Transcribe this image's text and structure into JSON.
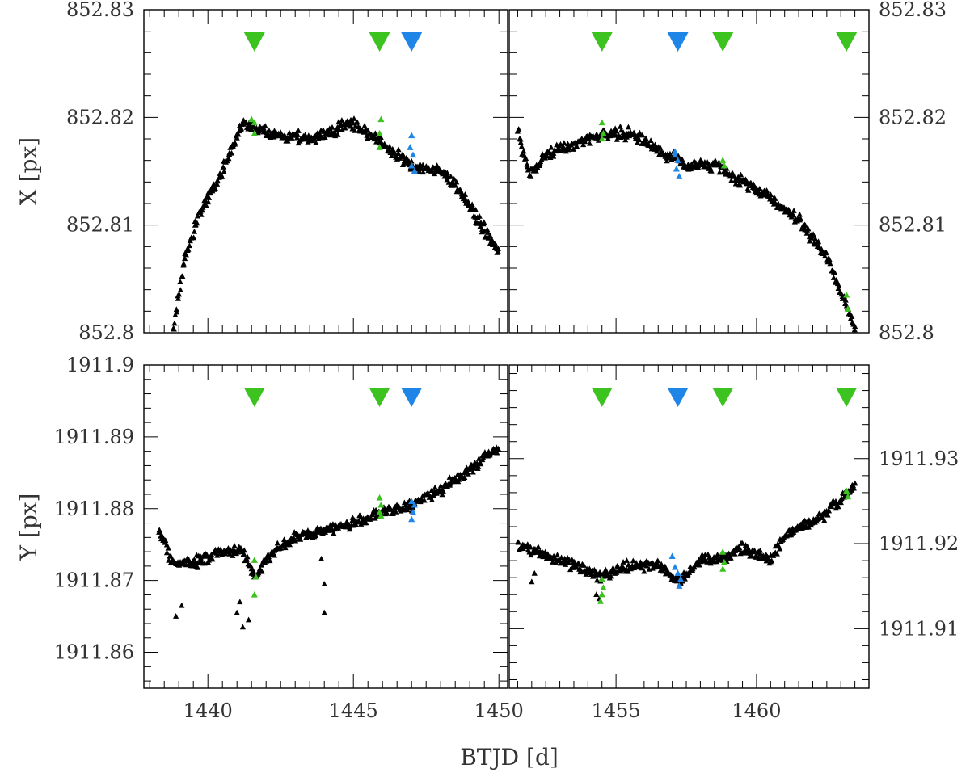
{
  "figure": {
    "x_axis_label": "BTJD [d]",
    "y_axis_label_top": "X [px]",
    "y_axis_label_bottom": "Y [px]"
  },
  "colors": {
    "black": "#000000",
    "green": "#3cc31f",
    "blue": "#1f86e8"
  },
  "chart_data": [
    {
      "id": "x-left",
      "type": "scatter",
      "xlim": [
        1437.8,
        1450.3
      ],
      "ylim": [
        852.8,
        852.83
      ],
      "x_ticks": [
        1440,
        1445,
        1450
      ],
      "x_tick_labels": [],
      "y_ticks": [
        852.8,
        852.81,
        852.82,
        852.83
      ],
      "y_tick_labels": [
        "852.8",
        "852.81",
        "852.82",
        "852.83"
      ],
      "y_label_side": "left",
      "markers": [
        {
          "x": 1441.6,
          "color": "green"
        },
        {
          "x": 1445.9,
          "color": "green"
        },
        {
          "x": 1447.0,
          "color": "blue"
        }
      ],
      "trend": [
        [
          1438.8,
          852.8
        ],
        [
          1439.2,
          852.807
        ],
        [
          1439.7,
          852.811
        ],
        [
          1440.5,
          852.815
        ],
        [
          1441.2,
          852.8195
        ],
        [
          1442.0,
          852.8185
        ],
        [
          1443.5,
          852.818
        ],
        [
          1445.0,
          852.8195
        ],
        [
          1446.0,
          852.8175
        ],
        [
          1447.0,
          852.8155
        ],
        [
          1448.0,
          852.815
        ],
        [
          1448.6,
          852.8135
        ],
        [
          1449.5,
          852.8095
        ],
        [
          1450.0,
          852.8075
        ]
      ],
      "colored": [
        {
          "x": 1441.6,
          "y": 852.8195,
          "color": "green"
        },
        {
          "x": 1441.6,
          "y": 852.8185,
          "color": "green"
        },
        {
          "x": 1441.5,
          "y": 852.8198,
          "color": "green"
        },
        {
          "x": 1445.9,
          "y": 852.8185,
          "color": "green"
        },
        {
          "x": 1445.95,
          "y": 852.8198,
          "color": "green"
        },
        {
          "x": 1445.9,
          "y": 852.8172,
          "color": "green"
        },
        {
          "x": 1447.0,
          "y": 852.8183,
          "color": "blue"
        },
        {
          "x": 1447.05,
          "y": 852.8165,
          "color": "blue"
        },
        {
          "x": 1447.0,
          "y": 852.8155,
          "color": "blue"
        },
        {
          "x": 1447.1,
          "y": 852.815,
          "color": "blue"
        },
        {
          "x": 1446.95,
          "y": 852.8172,
          "color": "blue"
        }
      ]
    },
    {
      "id": "x-right",
      "type": "scatter",
      "xlim": [
        1451.2,
        1464.0
      ],
      "ylim": [
        852.8,
        852.83
      ],
      "x_ticks": [
        1455,
        1460
      ],
      "x_tick_labels": [],
      "y_ticks": [
        852.8,
        852.81,
        852.82,
        852.83
      ],
      "y_tick_labels": [
        "852.8",
        "852.81",
        "852.82",
        "852.83"
      ],
      "y_label_side": "right",
      "markers": [
        {
          "x": 1454.5,
          "color": "green"
        },
        {
          "x": 1457.2,
          "color": "blue"
        },
        {
          "x": 1458.8,
          "color": "green"
        },
        {
          "x": 1463.2,
          "color": "green"
        }
      ],
      "trend": [
        [
          1451.5,
          852.819
        ],
        [
          1451.9,
          852.8145
        ],
        [
          1452.5,
          852.8165
        ],
        [
          1453.5,
          852.8175
        ],
        [
          1454.5,
          852.8185
        ],
        [
          1455.5,
          852.8185
        ],
        [
          1456.5,
          852.817
        ],
        [
          1457.5,
          852.8155
        ],
        [
          1458.5,
          852.8155
        ],
        [
          1459.5,
          852.814
        ],
        [
          1460.5,
          852.8125
        ],
        [
          1461.5,
          852.8105
        ],
        [
          1462.5,
          852.807
        ],
        [
          1463.5,
          852.8005
        ]
      ],
      "colored": [
        {
          "x": 1454.5,
          "y": 852.8195,
          "color": "green"
        },
        {
          "x": 1454.55,
          "y": 852.8185,
          "color": "green"
        },
        {
          "x": 1454.5,
          "y": 852.818,
          "color": "green"
        },
        {
          "x": 1457.1,
          "y": 852.8168,
          "color": "blue"
        },
        {
          "x": 1457.2,
          "y": 852.816,
          "color": "blue"
        },
        {
          "x": 1457.15,
          "y": 852.8152,
          "color": "blue"
        },
        {
          "x": 1457.25,
          "y": 852.8145,
          "color": "blue"
        },
        {
          "x": 1457.1,
          "y": 852.8165,
          "color": "blue"
        },
        {
          "x": 1458.8,
          "y": 852.816,
          "color": "green"
        },
        {
          "x": 1458.85,
          "y": 852.8155,
          "color": "green"
        },
        {
          "x": 1463.2,
          "y": 852.8035,
          "color": "green"
        },
        {
          "x": 1463.25,
          "y": 852.8022,
          "color": "green"
        }
      ]
    },
    {
      "id": "y-left",
      "type": "scatter",
      "xlim": [
        1437.8,
        1450.3
      ],
      "ylim": [
        1911.855,
        1911.9
      ],
      "x_ticks": [
        1440,
        1445,
        1450
      ],
      "x_tick_labels": [
        "1440",
        "1445",
        "1450"
      ],
      "y_ticks": [
        1911.86,
        1911.87,
        1911.88,
        1911.89,
        1911.9
      ],
      "y_tick_labels": [
        "1911.86",
        "1911.87",
        "1911.88",
        "1911.89",
        "1911.9"
      ],
      "y_label_side": "left",
      "markers": [
        {
          "x": 1441.6,
          "color": "green"
        },
        {
          "x": 1445.9,
          "color": "green"
        },
        {
          "x": 1447.0,
          "color": "blue"
        }
      ],
      "trend": [
        [
          1438.3,
          1911.877
        ],
        [
          1438.8,
          1911.8725
        ],
        [
          1439.5,
          1911.8725
        ],
        [
          1440.5,
          1911.874
        ],
        [
          1441.2,
          1911.874
        ],
        [
          1441.6,
          1911.8705
        ],
        [
          1442.2,
          1911.874
        ],
        [
          1443.0,
          1911.876
        ],
        [
          1444.0,
          1911.877
        ],
        [
          1445.0,
          1911.878
        ],
        [
          1446.0,
          1911.8795
        ],
        [
          1447.0,
          1911.8805
        ],
        [
          1448.0,
          1911.8825
        ],
        [
          1449.0,
          1911.8855
        ],
        [
          1450.0,
          1911.8885
        ]
      ],
      "colored": [
        {
          "x": 1441.6,
          "y": 1911.8728,
          "color": "green"
        },
        {
          "x": 1441.65,
          "y": 1911.8705,
          "color": "green"
        },
        {
          "x": 1441.6,
          "y": 1911.868,
          "color": "green"
        },
        {
          "x": 1445.9,
          "y": 1911.8815,
          "color": "green"
        },
        {
          "x": 1445.95,
          "y": 1911.8805,
          "color": "green"
        },
        {
          "x": 1445.9,
          "y": 1911.8795,
          "color": "green"
        },
        {
          "x": 1445.95,
          "y": 1911.879,
          "color": "green"
        },
        {
          "x": 1447.0,
          "y": 1911.881,
          "color": "blue"
        },
        {
          "x": 1447.1,
          "y": 1911.8805,
          "color": "blue"
        },
        {
          "x": 1447.05,
          "y": 1911.8795,
          "color": "blue"
        },
        {
          "x": 1447.0,
          "y": 1911.8785,
          "color": "blue"
        }
      ],
      "outliers": [
        {
          "x": 1438.9,
          "y": 1911.865
        },
        {
          "x": 1439.1,
          "y": 1911.8665
        },
        {
          "x": 1441.0,
          "y": 1911.8655
        },
        {
          "x": 1441.2,
          "y": 1911.8635
        },
        {
          "x": 1441.4,
          "y": 1911.8645
        },
        {
          "x": 1441.1,
          "y": 1911.867
        },
        {
          "x": 1444.0,
          "y": 1911.8655
        },
        {
          "x": 1444.0,
          "y": 1911.8695
        },
        {
          "x": 1443.9,
          "y": 1911.873
        }
      ]
    },
    {
      "id": "y-right",
      "type": "scatter",
      "xlim": [
        1451.2,
        1464.0
      ],
      "ylim": [
        1911.903,
        1911.941
      ],
      "x_ticks": [
        1455,
        1460
      ],
      "x_tick_labels": [
        "1455",
        "1460"
      ],
      "y_ticks": [
        1911.91,
        1911.92,
        1911.93
      ],
      "y_tick_labels": [
        "1911.91",
        "1911.92",
        "1911.93"
      ],
      "y_label_side": "right",
      "markers": [
        {
          "x": 1454.5,
          "color": "green"
        },
        {
          "x": 1457.2,
          "color": "blue"
        },
        {
          "x": 1458.8,
          "color": "green"
        },
        {
          "x": 1463.2,
          "color": "green"
        }
      ],
      "trend": [
        [
          1451.5,
          1911.92
        ],
        [
          1452.5,
          1911.9185
        ],
        [
          1453.5,
          1911.9175
        ],
        [
          1454.5,
          1911.916
        ],
        [
          1455.5,
          1911.9175
        ],
        [
          1456.5,
          1911.9175
        ],
        [
          1457.3,
          1911.9155
        ],
        [
          1458.0,
          1911.918
        ],
        [
          1459.0,
          1911.9185
        ],
        [
          1459.5,
          1911.9195
        ],
        [
          1460.5,
          1911.918
        ],
        [
          1461.0,
          1911.921
        ],
        [
          1462.0,
          1911.9225
        ],
        [
          1463.0,
          1911.925
        ],
        [
          1463.5,
          1911.927
        ]
      ],
      "colored": [
        {
          "x": 1454.5,
          "y": 1911.9158,
          "color": "green"
        },
        {
          "x": 1454.55,
          "y": 1911.9148,
          "color": "green"
        },
        {
          "x": 1454.5,
          "y": 1911.914,
          "color": "green"
        },
        {
          "x": 1454.45,
          "y": 1911.9132,
          "color": "green"
        },
        {
          "x": 1457.0,
          "y": 1911.9185,
          "color": "blue"
        },
        {
          "x": 1457.1,
          "y": 1911.9172,
          "color": "blue"
        },
        {
          "x": 1457.2,
          "y": 1911.9165,
          "color": "blue"
        },
        {
          "x": 1457.3,
          "y": 1911.9158,
          "color": "blue"
        },
        {
          "x": 1457.25,
          "y": 1911.915,
          "color": "blue"
        },
        {
          "x": 1458.8,
          "y": 1911.919,
          "color": "green"
        },
        {
          "x": 1458.85,
          "y": 1911.9178,
          "color": "green"
        },
        {
          "x": 1458.8,
          "y": 1911.917,
          "color": "green"
        },
        {
          "x": 1463.2,
          "y": 1911.9262,
          "color": "green"
        },
        {
          "x": 1463.25,
          "y": 1911.9255,
          "color": "green"
        }
      ],
      "outliers": [
        {
          "x": 1454.4,
          "y": 1911.9135
        },
        {
          "x": 1454.3,
          "y": 1911.914
        },
        {
          "x": 1452.0,
          "y": 1911.9155
        },
        {
          "x": 1452.1,
          "y": 1911.9165
        }
      ]
    }
  ]
}
